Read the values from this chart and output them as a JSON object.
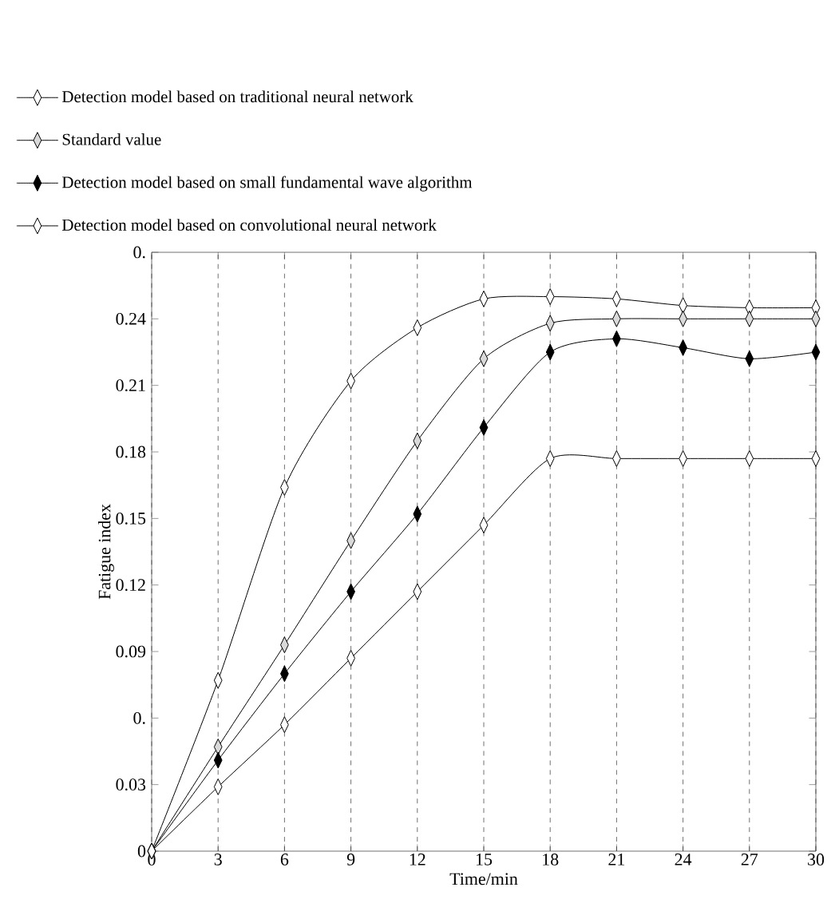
{
  "chart_data": {
    "type": "line",
    "xlabel": "Time/min",
    "ylabel": "Fatigue index",
    "x": [
      0,
      3,
      6,
      9,
      12,
      15,
      18,
      21,
      24,
      27,
      30
    ],
    "xlim": [
      0,
      30
    ],
    "xticks": [
      0,
      3,
      6,
      9,
      12,
      15,
      18,
      21,
      24,
      27,
      30
    ],
    "ylim": [
      0,
      0.27
    ],
    "yticks": [
      0,
      0.03,
      {
        "value": 0.06,
        "label": "0."
      },
      0.09,
      0.12,
      0.15,
      0.18,
      0.21,
      0.24,
      {
        "value": 0.27,
        "label": "0."
      }
    ],
    "grid": "x",
    "legend": "top",
    "marker": "diamond",
    "line_style": "solid",
    "series": [
      {
        "name": "Detection model based on traditional neural network",
        "color": "#ffffff",
        "values": [
          0,
          0.077,
          0.164,
          0.212,
          0.236,
          0.249,
          0.25,
          0.249,
          0.246,
          0.245,
          0.245
        ]
      },
      {
        "name": "Standard value",
        "color": "#d9d9d9",
        "values": [
          0,
          0.047,
          0.093,
          0.14,
          0.185,
          0.222,
          0.238,
          0.24,
          0.24,
          0.24,
          0.24
        ]
      },
      {
        "name": "Detection model based on small fundamental wave algorithm",
        "color": "#000000",
        "values": [
          0,
          0.041,
          0.08,
          0.117,
          0.152,
          0.191,
          0.225,
          0.231,
          0.227,
          0.222,
          0.225
        ]
      },
      {
        "name": "Detection model based on convolutional neural network",
        "color": "#ffffff",
        "values": [
          0,
          0.029,
          0.057,
          0.087,
          0.117,
          0.147,
          0.177,
          0.177,
          0.177,
          0.177,
          0.177
        ]
      }
    ]
  }
}
